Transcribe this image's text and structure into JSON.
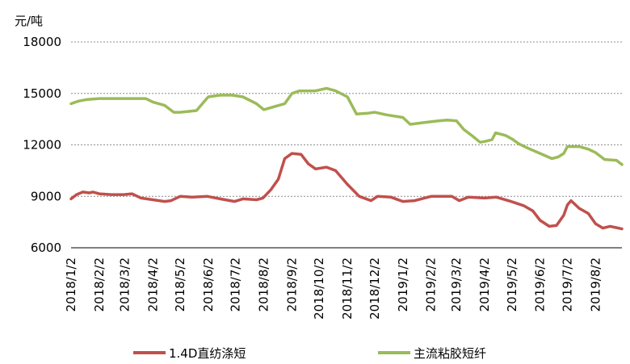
{
  "chart_data": {
    "type": "line",
    "ylabel": "元/吨",
    "ylim": [
      6000,
      18000
    ],
    "yticks": [
      "6000",
      "9000",
      "12000",
      "15000",
      "18000"
    ],
    "grid": true,
    "legend_position": "bottom",
    "x_tick_labels": [
      "2018/1/2",
      "2018/2/2",
      "2018/3/2",
      "2018/4/2",
      "2018/5/2",
      "2018/6/2",
      "2018/7/2",
      "2018/8/2",
      "2018/9/2",
      "2018/10/2",
      "2018/11/2",
      "2018/12/2",
      "2019/1/2",
      "2019/2/2",
      "2019/3/2",
      "2019/4/2",
      "2019/5/2",
      "2019/6/2",
      "2019/7/2",
      "2019/8/2"
    ],
    "x_range": [
      "2018-01-02",
      "2019-08-31"
    ],
    "series": [
      {
        "name": "1.4D直纺涤短",
        "color": "#c0504d",
        "points": [
          [
            "2018-01-02",
            8850
          ],
          [
            "2018-01-08",
            9100
          ],
          [
            "2018-01-15",
            9250
          ],
          [
            "2018-01-22",
            9200
          ],
          [
            "2018-01-26",
            9250
          ],
          [
            "2018-02-02",
            9150
          ],
          [
            "2018-02-15",
            9100
          ],
          [
            "2018-03-01",
            9100
          ],
          [
            "2018-03-10",
            9150
          ],
          [
            "2018-03-20",
            8900
          ],
          [
            "2018-04-02",
            8800
          ],
          [
            "2018-04-15",
            8700
          ],
          [
            "2018-04-22",
            8750
          ],
          [
            "2018-05-02",
            9000
          ],
          [
            "2018-05-15",
            8950
          ],
          [
            "2018-06-01",
            9000
          ],
          [
            "2018-06-15",
            8850
          ],
          [
            "2018-07-01",
            8700
          ],
          [
            "2018-07-10",
            8850
          ],
          [
            "2018-07-25",
            8800
          ],
          [
            "2018-08-01",
            8900
          ],
          [
            "2018-08-10",
            9400
          ],
          [
            "2018-08-18",
            10000
          ],
          [
            "2018-08-25",
            11200
          ],
          [
            "2018-09-02",
            11500
          ],
          [
            "2018-09-12",
            11450
          ],
          [
            "2018-09-20",
            10900
          ],
          [
            "2018-09-28",
            10600
          ],
          [
            "2018-10-10",
            10700
          ],
          [
            "2018-10-20",
            10500
          ],
          [
            "2018-11-02",
            9700
          ],
          [
            "2018-11-15",
            9000
          ],
          [
            "2018-11-28",
            8750
          ],
          [
            "2018-12-05",
            9000
          ],
          [
            "2018-12-20",
            8950
          ],
          [
            "2019-01-02",
            8700
          ],
          [
            "2019-01-15",
            8750
          ],
          [
            "2019-02-02",
            9000
          ],
          [
            "2019-02-25",
            9000
          ],
          [
            "2019-03-05",
            8750
          ],
          [
            "2019-03-15",
            8950
          ],
          [
            "2019-04-02",
            8900
          ],
          [
            "2019-04-15",
            8950
          ],
          [
            "2019-05-01",
            8700
          ],
          [
            "2019-05-15",
            8450
          ],
          [
            "2019-05-25",
            8150
          ],
          [
            "2019-06-02",
            7600
          ],
          [
            "2019-06-12",
            7250
          ],
          [
            "2019-06-20",
            7300
          ],
          [
            "2019-06-28",
            7900
          ],
          [
            "2019-07-02",
            8500
          ],
          [
            "2019-07-06",
            8750
          ],
          [
            "2019-07-15",
            8300
          ],
          [
            "2019-07-25",
            8000
          ],
          [
            "2019-08-02",
            7400
          ],
          [
            "2019-08-10",
            7150
          ],
          [
            "2019-08-18",
            7250
          ],
          [
            "2019-08-31",
            7100
          ]
        ]
      },
      {
        "name": "主流粘胶短纤",
        "color": "#9bbb59",
        "points": [
          [
            "2018-01-02",
            14400
          ],
          [
            "2018-01-10",
            14550
          ],
          [
            "2018-01-20",
            14650
          ],
          [
            "2018-02-02",
            14700
          ],
          [
            "2018-02-20",
            14700
          ],
          [
            "2018-03-10",
            14700
          ],
          [
            "2018-03-25",
            14700
          ],
          [
            "2018-04-02",
            14500
          ],
          [
            "2018-04-15",
            14300
          ],
          [
            "2018-04-25",
            13900
          ],
          [
            "2018-05-02",
            13900
          ],
          [
            "2018-05-20",
            14000
          ],
          [
            "2018-05-28",
            14500
          ],
          [
            "2018-06-02",
            14800
          ],
          [
            "2018-06-15",
            14900
          ],
          [
            "2018-06-28",
            14900
          ],
          [
            "2018-07-10",
            14800
          ],
          [
            "2018-07-25",
            14400
          ],
          [
            "2018-08-02",
            14050
          ],
          [
            "2018-08-15",
            14250
          ],
          [
            "2018-08-25",
            14400
          ],
          [
            "2018-09-02",
            15000
          ],
          [
            "2018-09-10",
            15150
          ],
          [
            "2018-09-28",
            15150
          ],
          [
            "2018-10-10",
            15300
          ],
          [
            "2018-10-20",
            15150
          ],
          [
            "2018-11-02",
            14800
          ],
          [
            "2018-11-12",
            13800
          ],
          [
            "2018-11-25",
            13850
          ],
          [
            "2018-12-02",
            13900
          ],
          [
            "2018-12-15",
            13750
          ],
          [
            "2019-01-02",
            13600
          ],
          [
            "2019-01-10",
            13200
          ],
          [
            "2019-01-25",
            13300
          ],
          [
            "2019-02-10",
            13400
          ],
          [
            "2019-02-20",
            13450
          ],
          [
            "2019-03-02",
            13400
          ],
          [
            "2019-03-10",
            12900
          ],
          [
            "2019-03-20",
            12500
          ],
          [
            "2019-03-28",
            12150
          ],
          [
            "2019-04-02",
            12200
          ],
          [
            "2019-04-10",
            12300
          ],
          [
            "2019-04-14",
            12700
          ],
          [
            "2019-04-25",
            12550
          ],
          [
            "2019-05-02",
            12350
          ],
          [
            "2019-05-10",
            12050
          ],
          [
            "2019-05-20",
            11800
          ],
          [
            "2019-06-02",
            11500
          ],
          [
            "2019-06-15",
            11200
          ],
          [
            "2019-06-22",
            11300
          ],
          [
            "2019-06-28",
            11500
          ],
          [
            "2019-07-02",
            11900
          ],
          [
            "2019-07-15",
            11900
          ],
          [
            "2019-07-25",
            11750
          ],
          [
            "2019-08-02",
            11550
          ],
          [
            "2019-08-12",
            11150
          ],
          [
            "2019-08-25",
            11100
          ],
          [
            "2019-08-31",
            10850
          ]
        ]
      }
    ]
  }
}
